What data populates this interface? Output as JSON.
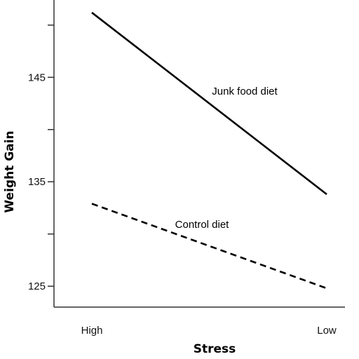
{
  "chart_data": {
    "type": "line",
    "title": "",
    "xlabel": "Stress",
    "ylabel": "Weight Gain",
    "categories": [
      "High",
      "Low"
    ],
    "ylim": [
      123,
      152
    ],
    "yticks": [
      125,
      130,
      135,
      140,
      145,
      150
    ],
    "ytick_labels": [
      "125",
      "",
      "135",
      "",
      "145",
      ""
    ],
    "grid": false,
    "legend": "inline labels next to lines",
    "series": [
      {
        "name": "Junk food diet",
        "values": [
          151.2,
          133.8
        ],
        "style": "solid",
        "color": "#000000"
      },
      {
        "name": "Control diet",
        "values": [
          132.9,
          124.8
        ],
        "style": "dashed",
        "color": "#000000"
      }
    ]
  }
}
